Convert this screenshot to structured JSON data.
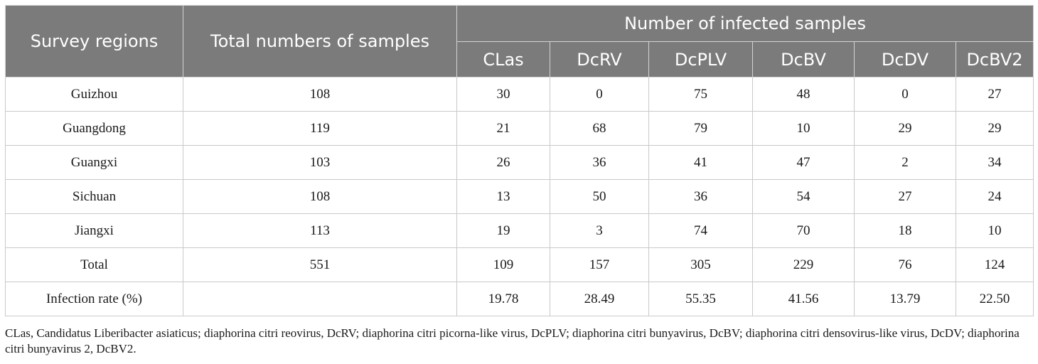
{
  "table": {
    "headers": {
      "survey_regions": "Survey regions",
      "total_samples": "Total numbers of samples",
      "infected_group": "Number of infected samples",
      "pathogens": [
        "CLas",
        "DcRV",
        "DcPLV",
        "DcBV",
        "DcDV",
        "DcBV2"
      ]
    },
    "rows": [
      {
        "region": "Guizhou",
        "total": "108",
        "values": [
          "30",
          "0",
          "75",
          "48",
          "0",
          "27"
        ]
      },
      {
        "region": "Guangdong",
        "total": "119",
        "values": [
          "21",
          "68",
          "79",
          "10",
          "29",
          "29"
        ]
      },
      {
        "region": "Guangxi",
        "total": "103",
        "values": [
          "26",
          "36",
          "41",
          "47",
          "2",
          "34"
        ]
      },
      {
        "region": "Sichuan",
        "total": "108",
        "values": [
          "13",
          "50",
          "36",
          "54",
          "27",
          "24"
        ]
      },
      {
        "region": "Jiangxi",
        "total": "113",
        "values": [
          "19",
          "3",
          "74",
          "70",
          "18",
          "10"
        ]
      },
      {
        "region": "Total",
        "total": "551",
        "values": [
          "109",
          "157",
          "305",
          "229",
          "76",
          "124"
        ]
      },
      {
        "region": "Infection rate (%)",
        "total": "",
        "values": [
          "19.78",
          "28.49",
          "55.35",
          "41.56",
          "13.79",
          "22.50"
        ]
      }
    ]
  },
  "footnote": "CLas, Candidatus Liberibacter asiaticus; diaphorina citri reovirus, DcRV; diaphorina citri picorna-like virus, DcPLV; diaphorina citri bunyavirus, DcBV; diaphorina citri densovirus-like virus, DcDV; diaphorina citri bunyavirus 2, DcBV2.",
  "colors": {
    "header_bg": "#7b7b7b",
    "header_text": "#ffffff",
    "grid_line": "#c9c9c9"
  }
}
